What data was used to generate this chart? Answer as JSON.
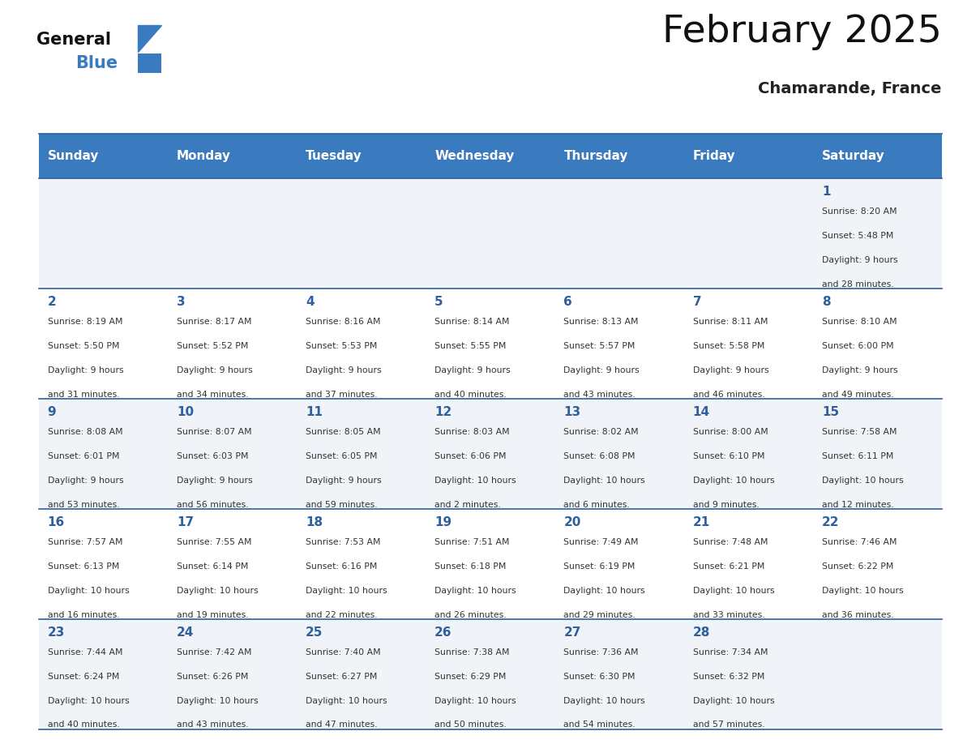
{
  "title": "February 2025",
  "subtitle": "Chamarande, France",
  "header_color": "#3a7bbf",
  "header_text_color": "#ffffff",
  "day_names": [
    "Sunday",
    "Monday",
    "Tuesday",
    "Wednesday",
    "Thursday",
    "Friday",
    "Saturday"
  ],
  "background_color": "#ffffff",
  "cell_bg_light": "#f0f4f8",
  "cell_bg_white": "#ffffff",
  "separator_color": "#2e5f9e",
  "day_number_color": "#2e5f9e",
  "info_text_color": "#333333",
  "calendar_data": [
    [
      null,
      null,
      null,
      null,
      null,
      null,
      {
        "day": "1",
        "sunrise": "8:20 AM",
        "sunset": "5:48 PM",
        "daylight": "9 hours",
        "daylight2": "and 28 minutes."
      }
    ],
    [
      {
        "day": "2",
        "sunrise": "8:19 AM",
        "sunset": "5:50 PM",
        "daylight": "9 hours",
        "daylight2": "and 31 minutes."
      },
      {
        "day": "3",
        "sunrise": "8:17 AM",
        "sunset": "5:52 PM",
        "daylight": "9 hours",
        "daylight2": "and 34 minutes."
      },
      {
        "day": "4",
        "sunrise": "8:16 AM",
        "sunset": "5:53 PM",
        "daylight": "9 hours",
        "daylight2": "and 37 minutes."
      },
      {
        "day": "5",
        "sunrise": "8:14 AM",
        "sunset": "5:55 PM",
        "daylight": "9 hours",
        "daylight2": "and 40 minutes."
      },
      {
        "day": "6",
        "sunrise": "8:13 AM",
        "sunset": "5:57 PM",
        "daylight": "9 hours",
        "daylight2": "and 43 minutes."
      },
      {
        "day": "7",
        "sunrise": "8:11 AM",
        "sunset": "5:58 PM",
        "daylight": "9 hours",
        "daylight2": "and 46 minutes."
      },
      {
        "day": "8",
        "sunrise": "8:10 AM",
        "sunset": "6:00 PM",
        "daylight": "9 hours",
        "daylight2": "and 49 minutes."
      }
    ],
    [
      {
        "day": "9",
        "sunrise": "8:08 AM",
        "sunset": "6:01 PM",
        "daylight": "9 hours",
        "daylight2": "and 53 minutes."
      },
      {
        "day": "10",
        "sunrise": "8:07 AM",
        "sunset": "6:03 PM",
        "daylight": "9 hours",
        "daylight2": "and 56 minutes."
      },
      {
        "day": "11",
        "sunrise": "8:05 AM",
        "sunset": "6:05 PM",
        "daylight": "9 hours",
        "daylight2": "and 59 minutes."
      },
      {
        "day": "12",
        "sunrise": "8:03 AM",
        "sunset": "6:06 PM",
        "daylight": "10 hours",
        "daylight2": "and 2 minutes."
      },
      {
        "day": "13",
        "sunrise": "8:02 AM",
        "sunset": "6:08 PM",
        "daylight": "10 hours",
        "daylight2": "and 6 minutes."
      },
      {
        "day": "14",
        "sunrise": "8:00 AM",
        "sunset": "6:10 PM",
        "daylight": "10 hours",
        "daylight2": "and 9 minutes."
      },
      {
        "day": "15",
        "sunrise": "7:58 AM",
        "sunset": "6:11 PM",
        "daylight": "10 hours",
        "daylight2": "and 12 minutes."
      }
    ],
    [
      {
        "day": "16",
        "sunrise": "7:57 AM",
        "sunset": "6:13 PM",
        "daylight": "10 hours",
        "daylight2": "and 16 minutes."
      },
      {
        "day": "17",
        "sunrise": "7:55 AM",
        "sunset": "6:14 PM",
        "daylight": "10 hours",
        "daylight2": "and 19 minutes."
      },
      {
        "day": "18",
        "sunrise": "7:53 AM",
        "sunset": "6:16 PM",
        "daylight": "10 hours",
        "daylight2": "and 22 minutes."
      },
      {
        "day": "19",
        "sunrise": "7:51 AM",
        "sunset": "6:18 PM",
        "daylight": "10 hours",
        "daylight2": "and 26 minutes."
      },
      {
        "day": "20",
        "sunrise": "7:49 AM",
        "sunset": "6:19 PM",
        "daylight": "10 hours",
        "daylight2": "and 29 minutes."
      },
      {
        "day": "21",
        "sunrise": "7:48 AM",
        "sunset": "6:21 PM",
        "daylight": "10 hours",
        "daylight2": "and 33 minutes."
      },
      {
        "day": "22",
        "sunrise": "7:46 AM",
        "sunset": "6:22 PM",
        "daylight": "10 hours",
        "daylight2": "and 36 minutes."
      }
    ],
    [
      {
        "day": "23",
        "sunrise": "7:44 AM",
        "sunset": "6:24 PM",
        "daylight": "10 hours",
        "daylight2": "and 40 minutes."
      },
      {
        "day": "24",
        "sunrise": "7:42 AM",
        "sunset": "6:26 PM",
        "daylight": "10 hours",
        "daylight2": "and 43 minutes."
      },
      {
        "day": "25",
        "sunrise": "7:40 AM",
        "sunset": "6:27 PM",
        "daylight": "10 hours",
        "daylight2": "and 47 minutes."
      },
      {
        "day": "26",
        "sunrise": "7:38 AM",
        "sunset": "6:29 PM",
        "daylight": "10 hours",
        "daylight2": "and 50 minutes."
      },
      {
        "day": "27",
        "sunrise": "7:36 AM",
        "sunset": "6:30 PM",
        "daylight": "10 hours",
        "daylight2": "and 54 minutes."
      },
      {
        "day": "28",
        "sunrise": "7:34 AM",
        "sunset": "6:32 PM",
        "daylight": "10 hours",
        "daylight2": "and 57 minutes."
      },
      null
    ]
  ]
}
